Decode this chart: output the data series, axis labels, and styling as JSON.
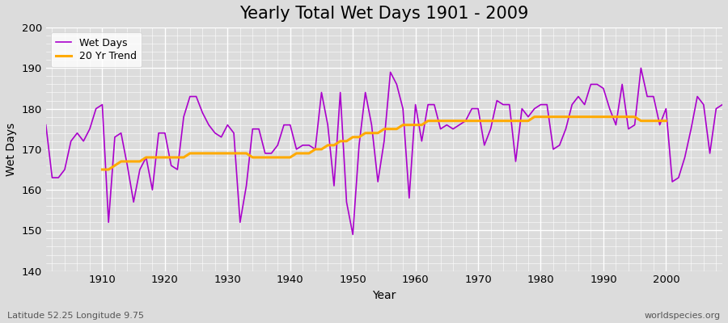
{
  "title": "Yearly Total Wet Days 1901 - 2009",
  "xlabel": "Year",
  "ylabel": "Wet Days",
  "ylim": [
    140,
    200
  ],
  "xlim": [
    1901,
    2009
  ],
  "yticks": [
    140,
    150,
    160,
    170,
    180,
    190,
    200
  ],
  "xticks": [
    1910,
    1920,
    1930,
    1940,
    1950,
    1960,
    1970,
    1980,
    1990,
    2000
  ],
  "background_color": "#dcdcdc",
  "plot_bg_color": "#dcdcdc",
  "wet_days_color": "#aa00cc",
  "trend_color": "#ffaa00",
  "title_fontsize": 15,
  "label_fontsize": 10,
  "footnote_left": "Latitude 52.25 Longitude 9.75",
  "footnote_right": "worldspecies.org",
  "legend_labels": [
    "Wet Days",
    "20 Yr Trend"
  ],
  "years": [
    1901,
    1902,
    1903,
    1904,
    1905,
    1906,
    1907,
    1908,
    1909,
    1910,
    1911,
    1912,
    1913,
    1914,
    1915,
    1916,
    1917,
    1918,
    1919,
    1920,
    1921,
    1922,
    1923,
    1924,
    1925,
    1926,
    1927,
    1928,
    1929,
    1930,
    1931,
    1932,
    1933,
    1934,
    1935,
    1936,
    1937,
    1938,
    1939,
    1940,
    1941,
    1942,
    1943,
    1944,
    1945,
    1946,
    1947,
    1948,
    1949,
    1950,
    1951,
    1952,
    1953,
    1954,
    1955,
    1956,
    1957,
    1958,
    1959,
    1960,
    1961,
    1962,
    1963,
    1964,
    1965,
    1966,
    1967,
    1968,
    1969,
    1970,
    1971,
    1972,
    1973,
    1974,
    1975,
    1976,
    1977,
    1978,
    1979,
    1980,
    1981,
    1982,
    1983,
    1984,
    1985,
    1986,
    1987,
    1988,
    1989,
    1990,
    1991,
    1992,
    1993,
    1994,
    1995,
    1996,
    1997,
    1998,
    1999,
    2000,
    2001,
    2002,
    2003,
    2004,
    2005,
    2006,
    2007,
    2008,
    2009
  ],
  "wet_days": [
    176,
    163,
    163,
    165,
    172,
    174,
    172,
    175,
    180,
    181,
    152,
    173,
    174,
    166,
    157,
    165,
    168,
    160,
    174,
    174,
    166,
    165,
    178,
    183,
    183,
    179,
    176,
    174,
    173,
    176,
    174,
    152,
    161,
    175,
    175,
    169,
    169,
    171,
    176,
    176,
    170,
    171,
    171,
    170,
    184,
    176,
    161,
    184,
    157,
    149,
    171,
    184,
    176,
    162,
    172,
    189,
    186,
    180,
    158,
    181,
    172,
    181,
    181,
    175,
    176,
    175,
    176,
    177,
    180,
    180,
    171,
    175,
    182,
    181,
    181,
    167,
    180,
    178,
    180,
    181,
    181,
    170,
    171,
    175,
    181,
    183,
    181,
    186,
    186,
    185,
    180,
    176,
    186,
    175,
    176,
    190,
    183,
    183,
    176,
    180,
    162,
    163,
    168,
    175,
    183,
    181,
    169,
    180,
    181
  ],
  "trend": [
    null,
    null,
    null,
    null,
    null,
    null,
    null,
    null,
    null,
    165,
    165,
    166,
    167,
    167,
    167,
    167,
    168,
    168,
    168,
    168,
    168,
    168,
    168,
    169,
    169,
    169,
    169,
    169,
    169,
    169,
    169,
    169,
    169,
    168,
    168,
    168,
    168,
    168,
    168,
    168,
    169,
    169,
    169,
    170,
    170,
    171,
    171,
    172,
    172,
    173,
    173,
    174,
    174,
    174,
    175,
    175,
    175,
    176,
    176,
    176,
    176,
    177,
    177,
    177,
    177,
    177,
    177,
    177,
    177,
    177,
    177,
    177,
    177,
    177,
    177,
    177,
    177,
    177,
    178,
    178,
    178,
    178,
    178,
    178,
    178,
    178,
    178,
    178,
    178,
    178,
    178,
    178,
    178,
    178,
    178,
    177,
    177,
    177,
    177,
    177,
    null,
    null,
    null,
    null,
    null,
    null,
    null,
    null,
    null
  ]
}
